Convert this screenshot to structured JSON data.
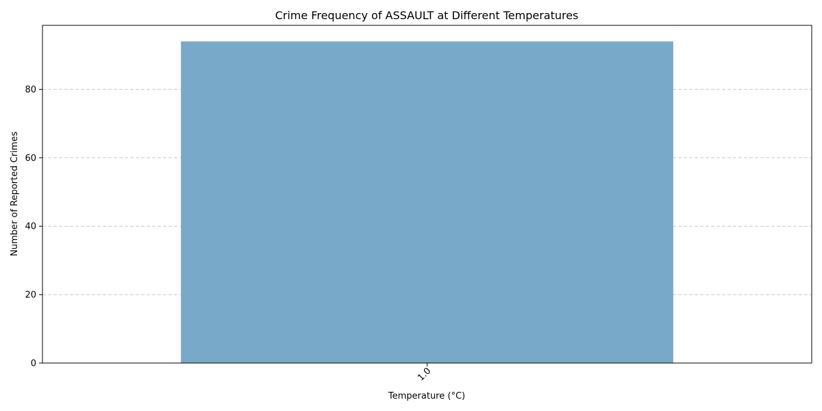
{
  "chart_data": {
    "type": "bar",
    "title": "Crime Frequency of ASSAULT at Different Temperatures",
    "xlabel": "Temperature (°C)",
    "ylabel": "Number of Reported Crimes",
    "categories": [
      "1.0"
    ],
    "values": [
      94
    ],
    "ylim": [
      0,
      98.7
    ],
    "yticks": [
      0,
      20,
      40,
      60,
      80
    ],
    "ygrid": true,
    "xtick_rotation": 45,
    "bar_color": "#78a9c8"
  }
}
